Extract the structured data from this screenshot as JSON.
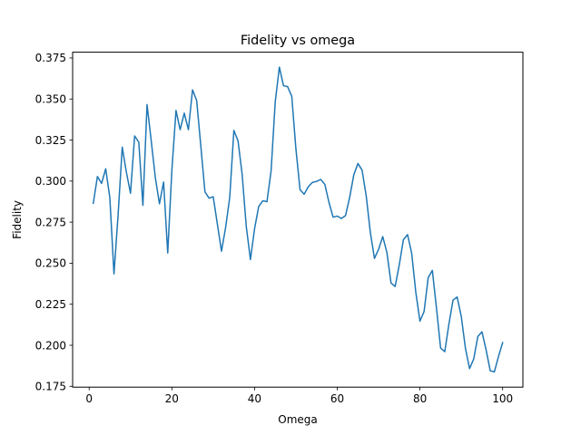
{
  "chart_data": {
    "type": "line",
    "title": "Fidelity vs omega",
    "xlabel": "Omega",
    "ylabel": "Fidelity",
    "xlim": [
      -4.0,
      104.9
    ],
    "ylim": [
      0.1745,
      0.3785
    ],
    "xticks": [
      0,
      20,
      40,
      60,
      80,
      100
    ],
    "xtick_labels": [
      "0",
      "20",
      "40",
      "60",
      "80",
      "100"
    ],
    "yticks": [
      0.175,
      0.2,
      0.225,
      0.25,
      0.275,
      0.3,
      0.325,
      0.35,
      0.375
    ],
    "ytick_labels": [
      "0.175",
      "0.200",
      "0.225",
      "0.250",
      "0.275",
      "0.300",
      "0.325",
      "0.350",
      "0.375"
    ],
    "grid": false,
    "line_color": "#1f77b4",
    "series": [
      {
        "x": [
          1,
          2,
          3,
          4,
          5,
          6,
          7,
          8,
          9,
          10,
          11,
          12,
          13,
          14,
          15,
          16,
          17,
          18,
          19,
          20,
          21,
          22,
          23,
          24,
          25,
          26,
          27,
          28,
          29,
          30,
          31,
          32,
          33,
          34,
          35,
          36,
          37,
          38,
          39,
          40,
          41,
          42,
          43,
          44,
          45,
          46,
          47,
          48,
          49,
          50,
          51,
          52,
          53,
          54,
          55,
          56,
          57,
          58,
          59,
          60,
          61,
          62,
          63,
          64,
          65,
          66,
          67,
          68,
          69,
          70,
          71,
          72,
          73,
          74,
          75,
          76,
          77,
          78,
          79,
          80,
          81,
          82,
          83,
          84,
          85,
          86,
          87,
          88,
          89,
          90,
          91,
          92,
          93,
          94,
          95,
          96,
          97,
          98,
          99,
          100
        ],
        "y": [
          0.2865,
          0.3028,
          0.2986,
          0.3075,
          0.2899,
          0.2435,
          0.2794,
          0.3207,
          0.3054,
          0.2926,
          0.3275,
          0.3237,
          0.2852,
          0.3466,
          0.3247,
          0.3022,
          0.2862,
          0.2994,
          0.2562,
          0.3066,
          0.343,
          0.3313,
          0.3414,
          0.3313,
          0.3556,
          0.3491,
          0.3215,
          0.2935,
          0.2896,
          0.2905,
          0.2739,
          0.2573,
          0.2717,
          0.2902,
          0.3309,
          0.3245,
          0.3041,
          0.2723,
          0.2522,
          0.2709,
          0.2845,
          0.288,
          0.2875,
          0.3062,
          0.3483,
          0.3694,
          0.3581,
          0.3575,
          0.3516,
          0.3197,
          0.2948,
          0.292,
          0.2966,
          0.2992,
          0.2998,
          0.301,
          0.298,
          0.287,
          0.278,
          0.2787,
          0.2772,
          0.279,
          0.29,
          0.3038,
          0.3107,
          0.3067,
          0.2911,
          0.2688,
          0.2529,
          0.2585,
          0.2662,
          0.2567,
          0.238,
          0.2358,
          0.249,
          0.2643,
          0.2674,
          0.2561,
          0.2323,
          0.2147,
          0.2206,
          0.2412,
          0.2456,
          0.2226,
          0.1983,
          0.1961,
          0.2128,
          0.2275,
          0.2294,
          0.2175,
          0.1982,
          0.1858,
          0.1916,
          0.2053,
          0.2082,
          0.1972,
          0.1845,
          0.1838,
          0.1932,
          0.2016
        ]
      }
    ]
  }
}
